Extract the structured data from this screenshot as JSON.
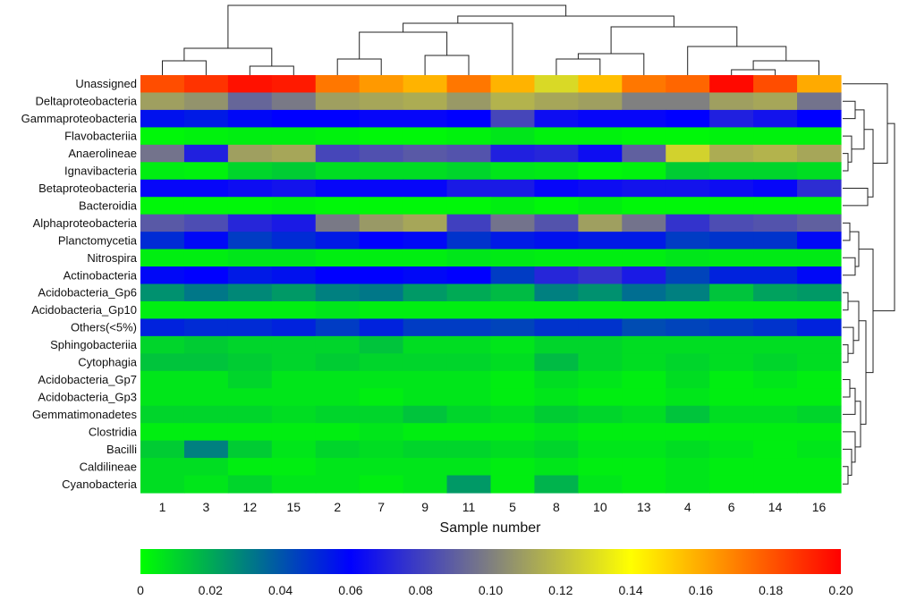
{
  "chart_data": {
    "type": "heatmap",
    "title": "",
    "xlabel": "Sample number",
    "ylabel": "",
    "columns": [
      "1",
      "3",
      "12",
      "15",
      "2",
      "7",
      "9",
      "11",
      "5",
      "8",
      "10",
      "13",
      "4",
      "6",
      "14",
      "16"
    ],
    "rows": [
      "Unassigned",
      "Deltaproteobacteria",
      "Gammaproteobacteria",
      "Flavobacteriia",
      "Anaerolineae",
      "Ignavibacteria",
      "Betaproteobacteria",
      "Bacteroidia",
      "Alphaproteobacteria",
      "Planctomycetia",
      "Nitrospira",
      "Actinobacteria",
      "Acidobacteria_Gp6",
      "Acidobacteria_Gp10",
      "Others(<5%)",
      "Sphingobacteriia",
      "Cytophagia",
      "Acidobacteria_Gp7",
      "Acidobacteria_Gp3",
      "Gemmatimonadetes",
      "Clostridia",
      "Bacilli",
      "Caldilineae",
      "Cyanobacteria"
    ],
    "values": [
      [
        0.182,
        0.188,
        0.196,
        0.194,
        0.172,
        0.164,
        0.158,
        0.172,
        0.158,
        0.128,
        0.155,
        0.172,
        0.176,
        0.198,
        0.182,
        0.16
      ],
      [
        0.11,
        0.106,
        0.092,
        0.098,
        0.11,
        0.112,
        0.114,
        0.108,
        0.116,
        0.112,
        0.11,
        0.1,
        0.1,
        0.11,
        0.112,
        0.096
      ],
      [
        0.056,
        0.054,
        0.058,
        0.06,
        0.06,
        0.062,
        0.062,
        0.06,
        0.082,
        0.064,
        0.062,
        0.062,
        0.06,
        0.07,
        0.066,
        0.06
      ],
      [
        0.002,
        0.003,
        0.004,
        0.004,
        0.003,
        0.002,
        0.002,
        0.003,
        0.006,
        0.003,
        0.003,
        0.002,
        0.002,
        0.003,
        0.003,
        0.003
      ],
      [
        0.096,
        0.07,
        0.11,
        0.112,
        0.082,
        0.085,
        0.088,
        0.086,
        0.07,
        0.072,
        0.064,
        0.09,
        0.126,
        0.114,
        0.116,
        0.112
      ],
      [
        0.004,
        0.003,
        0.01,
        0.012,
        0.008,
        0.008,
        0.008,
        0.01,
        0.006,
        0.005,
        0.002,
        0.003,
        0.012,
        0.01,
        0.01,
        0.008
      ],
      [
        0.062,
        0.062,
        0.064,
        0.066,
        0.062,
        0.062,
        0.062,
        0.068,
        0.068,
        0.062,
        0.064,
        0.066,
        0.066,
        0.064,
        0.062,
        0.074
      ],
      [
        0.002,
        0.002,
        0.002,
        0.003,
        0.002,
        0.002,
        0.002,
        0.002,
        0.004,
        0.002,
        0.004,
        0.002,
        0.002,
        0.002,
        0.002,
        0.002
      ],
      [
        0.088,
        0.084,
        0.072,
        0.068,
        0.098,
        0.108,
        0.112,
        0.08,
        0.096,
        0.086,
        0.11,
        0.096,
        0.076,
        0.084,
        0.086,
        0.09
      ],
      [
        0.05,
        0.058,
        0.046,
        0.05,
        0.054,
        0.06,
        0.058,
        0.048,
        0.054,
        0.056,
        0.054,
        0.054,
        0.046,
        0.048,
        0.048,
        0.058
      ],
      [
        0.004,
        0.004,
        0.006,
        0.006,
        0.004,
        0.004,
        0.004,
        0.006,
        0.005,
        0.004,
        0.004,
        0.004,
        0.006,
        0.005,
        0.005,
        0.005
      ],
      [
        0.058,
        0.06,
        0.054,
        0.056,
        0.06,
        0.06,
        0.058,
        0.06,
        0.046,
        0.072,
        0.076,
        0.068,
        0.044,
        0.052,
        0.052,
        0.058
      ],
      [
        0.026,
        0.032,
        0.028,
        0.024,
        0.03,
        0.032,
        0.024,
        0.02,
        0.016,
        0.03,
        0.026,
        0.034,
        0.03,
        0.014,
        0.022,
        0.024
      ],
      [
        0.004,
        0.004,
        0.004,
        0.004,
        0.006,
        0.004,
        0.004,
        0.004,
        0.004,
        0.004,
        0.004,
        0.004,
        0.004,
        0.004,
        0.004,
        0.004
      ],
      [
        0.052,
        0.05,
        0.05,
        0.052,
        0.046,
        0.052,
        0.046,
        0.046,
        0.044,
        0.048,
        0.048,
        0.042,
        0.044,
        0.046,
        0.048,
        0.052
      ],
      [
        0.01,
        0.012,
        0.01,
        0.01,
        0.01,
        0.014,
        0.008,
        0.008,
        0.006,
        0.01,
        0.01,
        0.008,
        0.008,
        0.008,
        0.008,
        0.008
      ],
      [
        0.014,
        0.014,
        0.012,
        0.01,
        0.012,
        0.01,
        0.01,
        0.01,
        0.008,
        0.016,
        0.01,
        0.008,
        0.01,
        0.008,
        0.01,
        0.008
      ],
      [
        0.006,
        0.006,
        0.01,
        0.006,
        0.006,
        0.006,
        0.006,
        0.006,
        0.004,
        0.008,
        0.006,
        0.004,
        0.008,
        0.004,
        0.006,
        0.004
      ],
      [
        0.006,
        0.006,
        0.006,
        0.006,
        0.006,
        0.004,
        0.006,
        0.006,
        0.004,
        0.006,
        0.004,
        0.004,
        0.006,
        0.004,
        0.004,
        0.004
      ],
      [
        0.01,
        0.01,
        0.01,
        0.008,
        0.01,
        0.01,
        0.014,
        0.01,
        0.008,
        0.012,
        0.01,
        0.008,
        0.014,
        0.008,
        0.008,
        0.01
      ],
      [
        0.004,
        0.004,
        0.004,
        0.004,
        0.004,
        0.006,
        0.004,
        0.004,
        0.004,
        0.006,
        0.004,
        0.004,
        0.004,
        0.004,
        0.004,
        0.004
      ],
      [
        0.012,
        0.03,
        0.012,
        0.006,
        0.01,
        0.008,
        0.01,
        0.01,
        0.008,
        0.01,
        0.006,
        0.006,
        0.008,
        0.006,
        0.004,
        0.006
      ],
      [
        0.008,
        0.008,
        0.004,
        0.004,
        0.006,
        0.006,
        0.006,
        0.006,
        0.004,
        0.006,
        0.004,
        0.004,
        0.006,
        0.004,
        0.004,
        0.004
      ],
      [
        0.008,
        0.006,
        0.01,
        0.006,
        0.006,
        0.004,
        0.006,
        0.024,
        0.004,
        0.018,
        0.006,
        0.004,
        0.006,
        0.004,
        0.004,
        0.004
      ]
    ],
    "colorbar": {
      "min": 0,
      "max": 0.2,
      "ticks": [
        "0",
        "0.02",
        "0.04",
        "0.06",
        "0.08",
        "0.10",
        "0.12",
        "0.14",
        "0.16",
        "0.18",
        "0.20"
      ],
      "stops": [
        {
          "value": 0.0,
          "color": "#00ff00"
        },
        {
          "value": 0.06,
          "color": "#0000ff"
        },
        {
          "value": 0.14,
          "color": "#ffff00"
        },
        {
          "value": 0.2,
          "color": "#ff0000"
        }
      ]
    },
    "grid": false,
    "legend": "colorbar-bottom",
    "dendrograms": {
      "columns": "top",
      "rows": "right"
    }
  }
}
